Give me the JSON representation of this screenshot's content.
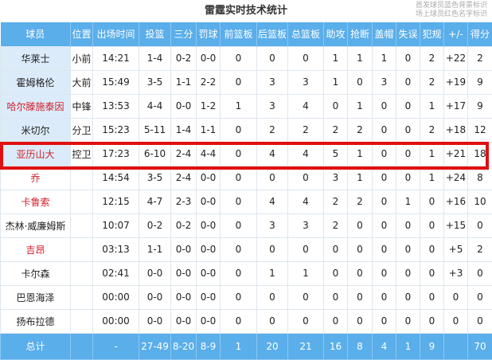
{
  "title": "雷霆实时技术统计",
  "legend": [
    "首发球员蓝色背景标识",
    "场上球员红色名字标识"
  ],
  "colors": {
    "header": "#5aaeea",
    "starter_bg": "#dcebfa",
    "on_court": "#d0202a",
    "highlight": "#e01010"
  },
  "columns": [
    "球员",
    "位置",
    "出场时间",
    "投篮",
    "三分",
    "罚球",
    "前篮板",
    "后篮板",
    "总篮板",
    "助攻",
    "抢断",
    "盖帽",
    "失误",
    "犯规",
    "+/-",
    "得分"
  ],
  "rows": [
    {
      "cells": [
        "华莱士",
        "小前",
        "14:21",
        "1-4",
        "0-2",
        "0-0",
        "0",
        "0",
        "0",
        "1",
        "1",
        "1",
        "0",
        "2",
        "+22",
        "2"
      ],
      "starter": true,
      "on_court": false
    },
    {
      "cells": [
        "霍姆格伦",
        "大前",
        "15:49",
        "3-5",
        "1-1",
        "2-2",
        "0",
        "3",
        "3",
        "1",
        "0",
        "3",
        "0",
        "2",
        "+19",
        "9"
      ],
      "starter": true,
      "on_court": false
    },
    {
      "cells": [
        "哈尔滕施泰因",
        "中锋",
        "13:53",
        "4-4",
        "0-0",
        "1-2",
        "1",
        "3",
        "4",
        "0",
        "1",
        "0",
        "0",
        "1",
        "+17",
        "9"
      ],
      "starter": true,
      "on_court": true
    },
    {
      "cells": [
        "米切尔",
        "分卫",
        "15:23",
        "5-11",
        "1-4",
        "1-1",
        "0",
        "2",
        "2",
        "2",
        "2",
        "0",
        "0",
        "2",
        "+18",
        "12"
      ],
      "starter": true,
      "on_court": false
    },
    {
      "cells": [
        "亚历山大",
        "控卫",
        "17:23",
        "6-10",
        "2-4",
        "4-4",
        "0",
        "4",
        "4",
        "5",
        "1",
        "0",
        "0",
        "1",
        "+21",
        "18"
      ],
      "starter": true,
      "on_court": true
    },
    {
      "cells": [
        "乔",
        "",
        "14:54",
        "3-5",
        "2-4",
        "0-0",
        "0",
        "0",
        "0",
        "3",
        "1",
        "0",
        "0",
        "1",
        "+24",
        "8"
      ],
      "starter": false,
      "on_court": true
    },
    {
      "cells": [
        "卡鲁索",
        "",
        "12:15",
        "4-7",
        "2-3",
        "0-0",
        "0",
        "4",
        "4",
        "2",
        "2",
        "0",
        "1",
        "0",
        "+16",
        "10"
      ],
      "starter": false,
      "on_court": true
    },
    {
      "cells": [
        "杰林·威廉姆斯",
        "",
        "10:07",
        "0-2",
        "0-2",
        "0-0",
        "0",
        "3",
        "3",
        "2",
        "0",
        "0",
        "0",
        "0",
        "+15",
        "0"
      ],
      "starter": false,
      "on_court": false
    },
    {
      "cells": [
        "吉昂",
        "",
        "03:13",
        "1-1",
        "0-0",
        "0-0",
        "0",
        "0",
        "0",
        "0",
        "0",
        "0",
        "0",
        "0",
        "+5",
        "2"
      ],
      "starter": false,
      "on_court": true
    },
    {
      "cells": [
        "卡尔森",
        "",
        "02:41",
        "0-0",
        "0-0",
        "0-0",
        "0",
        "1",
        "1",
        "0",
        "0",
        "0",
        "0",
        "0",
        "+3",
        "0"
      ],
      "starter": false,
      "on_court": false
    },
    {
      "cells": [
        "巴恩海泽",
        "",
        "00:00",
        "0-0",
        "0-0",
        "0-0",
        "0",
        "0",
        "0",
        "0",
        "0",
        "0",
        "0",
        "0",
        "0",
        "0"
      ],
      "starter": false,
      "on_court": false
    },
    {
      "cells": [
        "扬布拉德",
        "",
        "00:00",
        "0-0",
        "0-0",
        "0-0",
        "0",
        "0",
        "0",
        "0",
        "0",
        "0",
        "0",
        "0",
        "0",
        "0"
      ],
      "starter": false,
      "on_court": false
    }
  ],
  "total": [
    "总计",
    "",
    "-",
    "27-49",
    "8-20",
    "8-9",
    "1",
    "20",
    "21",
    "16",
    "8",
    "4",
    "1",
    "9",
    "",
    "70"
  ]
}
